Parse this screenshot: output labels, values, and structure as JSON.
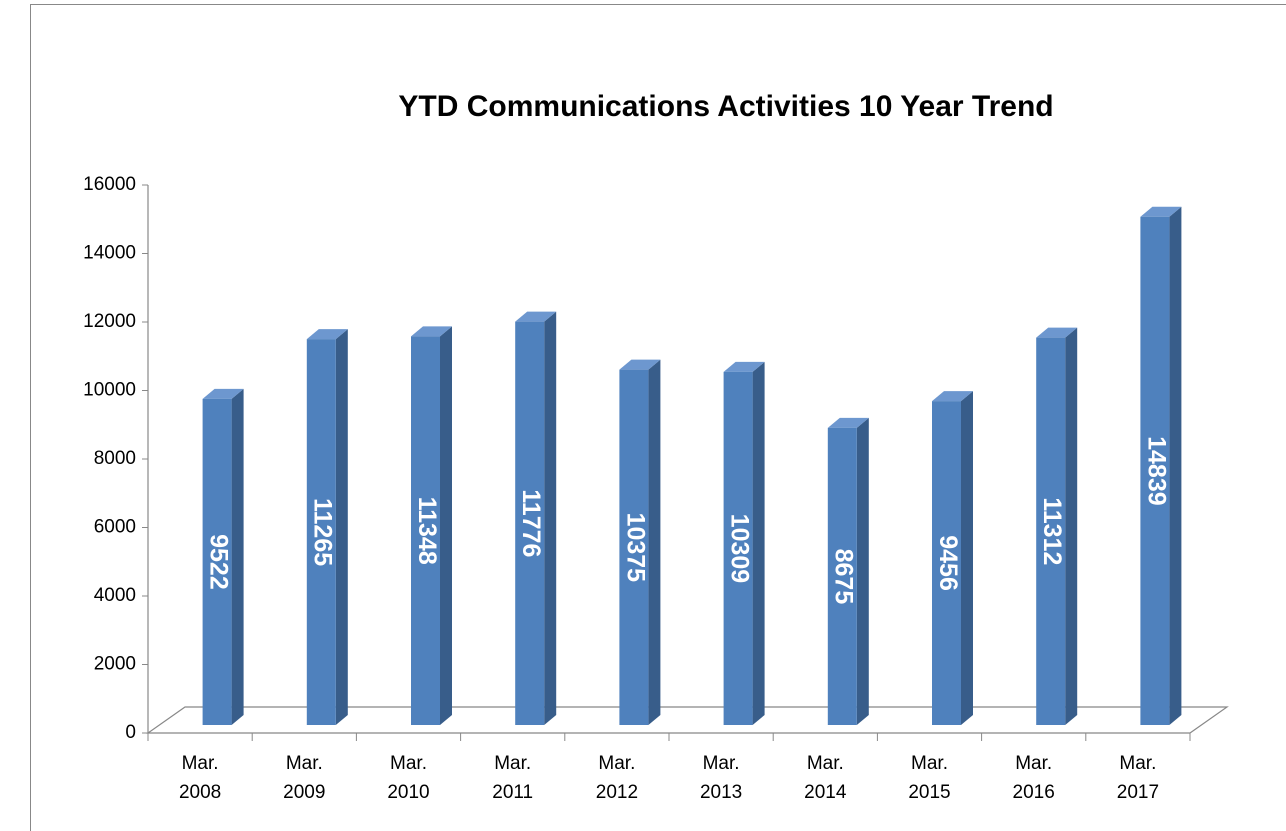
{
  "chart_data": {
    "type": "bar3d",
    "title": "YTD Communications Activities 10 Year Trend",
    "categories": [
      "Mar. 2008",
      "Mar. 2009",
      "Mar. 2010",
      "Mar. 2011",
      "Mar. 2012",
      "Mar. 2013",
      "Mar. 2014",
      "Mar. 2015",
      "Mar. 2016",
      "Mar. 2017"
    ],
    "values": [
      9522,
      11265,
      11348,
      11776,
      10375,
      10309,
      8675,
      9456,
      11312,
      14839
    ],
    "color": "#4f81bd",
    "ylim": [
      0,
      16000
    ],
    "yticks": [
      0,
      2000,
      4000,
      6000,
      8000,
      10000,
      12000,
      14000,
      16000
    ],
    "grid": false
  }
}
